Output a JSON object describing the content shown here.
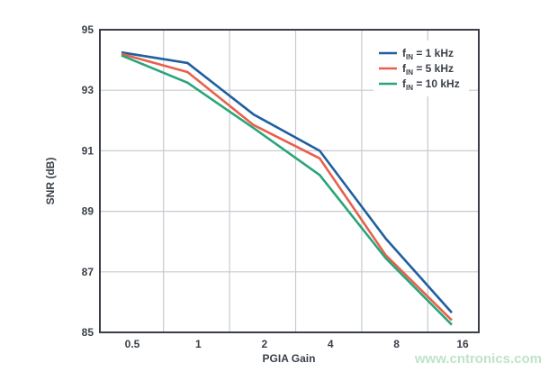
{
  "chart_data": {
    "type": "line",
    "title": "",
    "xlabel": "PGIA Gain",
    "ylabel": "SNR (dB)",
    "categories": [
      "0.5",
      "1",
      "2",
      "4",
      "8",
      "16"
    ],
    "ylim": [
      85,
      95
    ],
    "yticks": [
      "85",
      "87",
      "89",
      "91",
      "93",
      "95"
    ],
    "grid": true,
    "legend_position": "top-right",
    "series": [
      {
        "name": "fIN = 1 kHz",
        "name_parts": [
          "f",
          "IN",
          " = 1 kHz"
        ],
        "color": "#1f5fa0",
        "values": [
          94.25,
          93.9,
          92.2,
          91.0,
          88.1,
          85.65
        ]
      },
      {
        "name": "fIN = 5 kHz",
        "name_parts": [
          "f",
          "IN",
          " = 5 kHz"
        ],
        "color": "#e8604c",
        "values": [
          94.2,
          93.6,
          91.85,
          90.75,
          87.55,
          85.4
        ]
      },
      {
        "name": "fIN = 10 kHz",
        "name_parts": [
          "f",
          "IN",
          " = 10 kHz"
        ],
        "color": "#2aa57a",
        "values": [
          94.15,
          93.25,
          91.75,
          90.2,
          87.45,
          85.25
        ]
      }
    ]
  },
  "watermark": "www.cntronics.com"
}
